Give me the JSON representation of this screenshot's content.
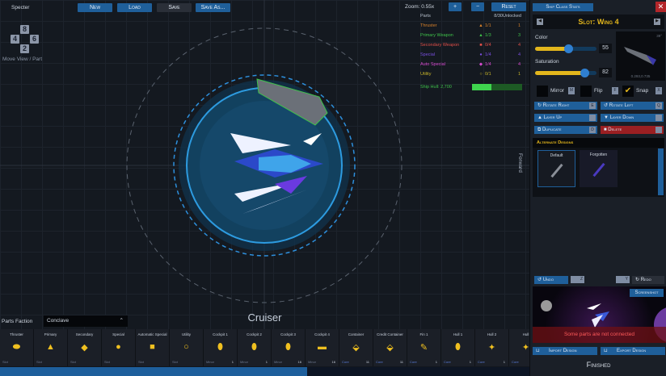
{
  "toolbar": {
    "ship_name": "Specter",
    "new": "New",
    "load": "Load",
    "save": "Save",
    "save_as": "Save As...",
    "zoom_label": "Zoom: 0.55x",
    "zoom_in": "+",
    "zoom_out": "−",
    "reset": "Reset"
  },
  "move": {
    "keys": [
      "8",
      "4",
      "6",
      "2"
    ],
    "label": "Move View / Part"
  },
  "parts": {
    "header": "Parts",
    "count": "8/30",
    "unlocked_header": "Unlocked",
    "rows": [
      {
        "name": "Thruster",
        "icon": "▲",
        "count": "1/1",
        "unlocked": "1",
        "color": "#d9822b"
      },
      {
        "name": "Primary Weapon",
        "icon": "▲",
        "count": "1/3",
        "unlocked": "3",
        "color": "#3fc24a"
      },
      {
        "name": "Secondary Weapon",
        "icon": "■",
        "count": "0/4",
        "unlocked": "4",
        "color": "#e0504a"
      },
      {
        "name": "Special",
        "icon": "●",
        "count": "1/4",
        "unlocked": "4",
        "color": "#7a4fe0"
      },
      {
        "name": "Auto Special",
        "icon": "◆",
        "count": "1/4",
        "unlocked": "4",
        "color": "#d84bd0"
      },
      {
        "name": "Utility",
        "icon": "○",
        "count": "0/1",
        "unlocked": "1",
        "color": "#c8b52a"
      }
    ],
    "hull_label": "Ship Hull: 2,700",
    "hull_fill": 0.38
  },
  "canvas": {
    "ship_class": "Cruiser",
    "forward": "Forward"
  },
  "faction": {
    "label": "Parts Faction",
    "value": "Conclave"
  },
  "side": {
    "class_stats": "Ship Class Stats",
    "slot": "Slot: Wing 4",
    "color_label": "Color",
    "color_value": "55",
    "color_fraction": 0.55,
    "saturation_label": "Saturation",
    "saturation_value": "82",
    "saturation_fraction": 0.82,
    "preview_angle": "39°",
    "preview_coords": "0.293,0.735",
    "mirror": "Mirror",
    "mirror_key": "M",
    "flip": "Flip",
    "flip_key": "F",
    "snap": "Snap",
    "snap_key": "X",
    "rotate_right": "Rotate Right",
    "rotate_right_key": "E",
    "rotate_left": "Rotate Left",
    "rotate_left_key": "Q",
    "layer_up": "Layer Up",
    "layer_down": "Layer Down",
    "duplicate": "Duplicate",
    "duplicate_key": "D",
    "delete": "Delete",
    "alt_title": "Alternate Designs",
    "alt_designs": [
      "Default",
      "Forgotten"
    ],
    "undo": "Undo",
    "undo_key": "Z",
    "redo_key": "Y",
    "redo": "Redo",
    "screenshot": "Screenshot",
    "warning": "Some parts are not connected",
    "import": "Import Design",
    "export": "Export Design",
    "finished": "Finished"
  },
  "slots": [
    {
      "title": "Thruster",
      "icon": "⬬",
      "kind": "Slot",
      "count": ""
    },
    {
      "title": "Primary",
      "icon": "▲",
      "kind": "Slot",
      "count": ""
    },
    {
      "title": "Secondary",
      "icon": "◆",
      "kind": "Slot",
      "count": ""
    },
    {
      "title": "Special",
      "icon": "●",
      "kind": "Slot",
      "count": ""
    },
    {
      "title": "Automatic Special",
      "icon": "■",
      "kind": "Slot",
      "count": ""
    },
    {
      "title": "Utility",
      "icon": "○",
      "kind": "Slot",
      "count": ""
    },
    {
      "title": "Cockpit 1",
      "icon": "⬮",
      "kind": "Minor",
      "count": "1"
    },
    {
      "title": "Cockpit 2",
      "icon": "⬮",
      "kind": "Minor",
      "count": "1"
    },
    {
      "title": "Cockpit 3",
      "icon": "⬮",
      "kind": "Minor",
      "count": "16"
    },
    {
      "title": "Cockpit 4",
      "icon": "▬",
      "kind": "Minor",
      "count": "16"
    },
    {
      "title": "Container",
      "icon": "⬙",
      "kind": "Core",
      "count": "11"
    },
    {
      "title": "Credit Container",
      "icon": "⬙",
      "kind": "Core",
      "count": "11"
    },
    {
      "title": "Fin 1",
      "icon": "✎",
      "kind": "Core",
      "count": "1"
    },
    {
      "title": "Hull 1",
      "icon": "⬮",
      "kind": "Core",
      "count": "1"
    },
    {
      "title": "Hull 2",
      "icon": "✦",
      "kind": "Core",
      "count": "1"
    },
    {
      "title": "Hull",
      "icon": "✦",
      "kind": "Core",
      "count": ""
    }
  ],
  "scroll_fraction": 0.58
}
